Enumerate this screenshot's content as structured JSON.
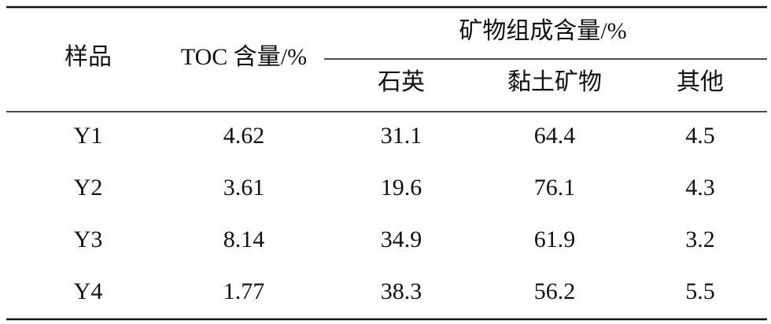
{
  "table": {
    "header": {
      "sample": "样品",
      "toc": "TOC 含量/%",
      "group": "矿物组成含量/%",
      "sub": [
        "石英",
        "黏土矿物",
        "其他"
      ]
    },
    "rows": [
      [
        "Y1",
        "4.62",
        "31.1",
        "64.4",
        "4.5"
      ],
      [
        "Y2",
        "3.61",
        "19.6",
        "76.1",
        "4.3"
      ],
      [
        "Y3",
        "8.14",
        "34.9",
        "61.9",
        "3.2"
      ],
      [
        "Y4",
        "1.77",
        "38.3",
        "56.2",
        "5.5"
      ]
    ]
  }
}
